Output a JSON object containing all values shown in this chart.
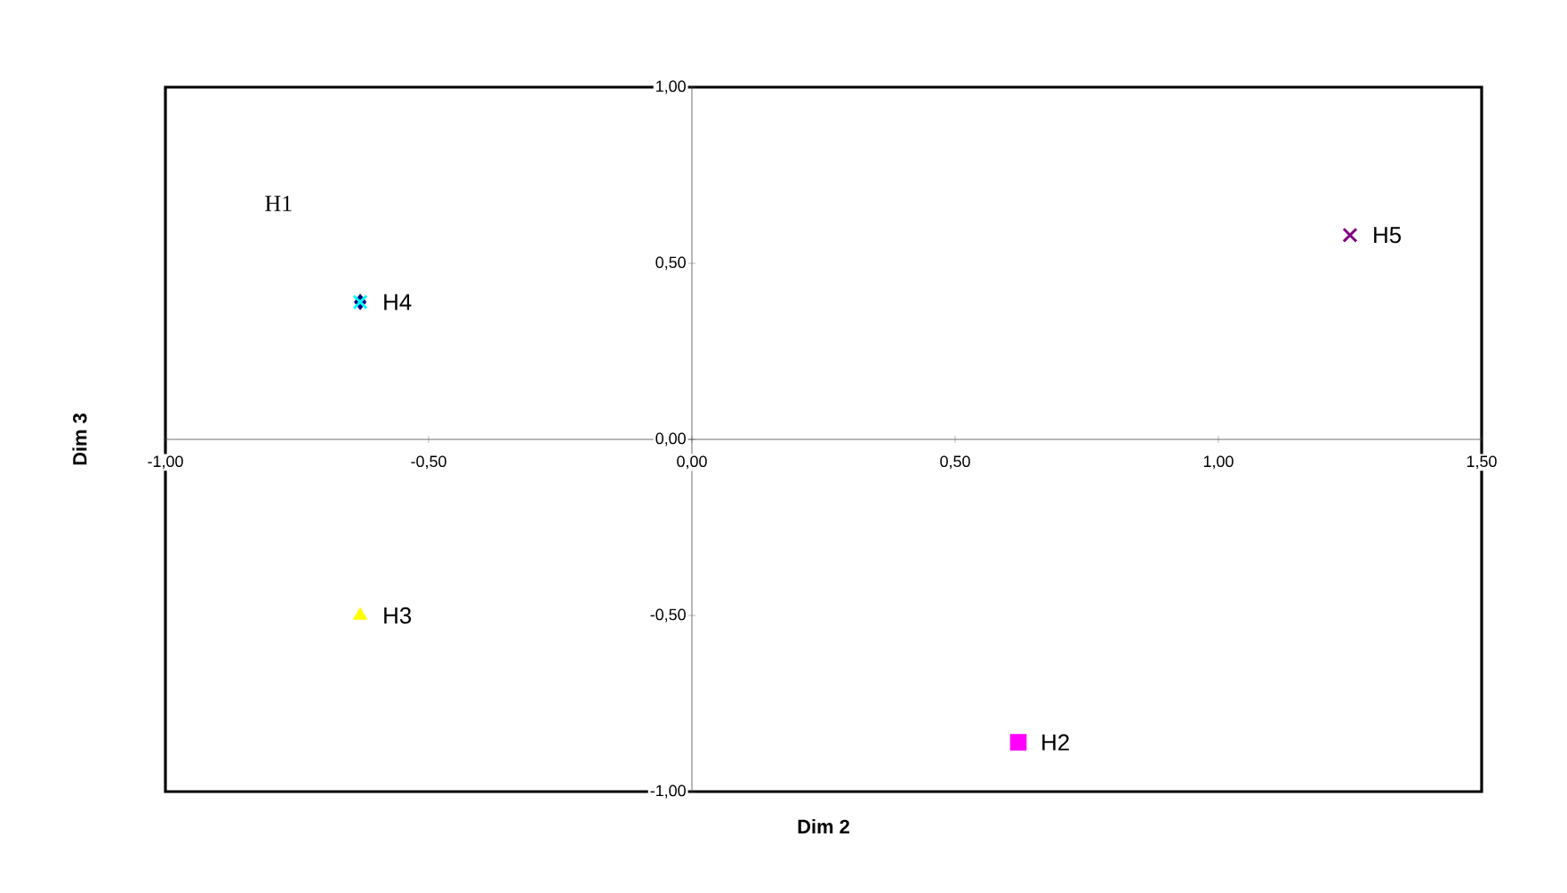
{
  "chart_data": {
    "type": "scatter",
    "xlabel": "Dim 2",
    "ylabel": "Dim 3",
    "xlim": [
      -1,
      1.5
    ],
    "ylim": [
      -1,
      1
    ],
    "xticks": [
      {
        "value": -1,
        "label": "-1,00"
      },
      {
        "value": -0.5,
        "label": "-0,50"
      },
      {
        "value": 0,
        "label": "0,00"
      },
      {
        "value": 0.5,
        "label": "0,50"
      },
      {
        "value": 1,
        "label": "1,00"
      },
      {
        "value": 1.5,
        "label": "1,50"
      }
    ],
    "yticks": [
      {
        "value": -1,
        "label": "-1,00"
      },
      {
        "value": -0.5,
        "label": "-0,50"
      },
      {
        "value": 0,
        "label": "0,00"
      },
      {
        "value": 0.5,
        "label": "0,50"
      },
      {
        "value": 1,
        "label": "1,00"
      }
    ],
    "series": [
      {
        "color": "#000080",
        "marker": "diamond",
        "x": [
          -0.63
        ],
        "values": [
          0.39
        ]
      },
      {
        "name": "H2",
        "color": "#ff00ff",
        "marker": "square",
        "x": [
          0.62
        ],
        "values": [
          -0.86
        ]
      },
      {
        "name": "H3",
        "color": "#ffff00",
        "marker": "triangle",
        "x": [
          -0.63
        ],
        "values": [
          -0.5
        ]
      },
      {
        "name": "H4",
        "color": "#00ffff",
        "marker": "cross",
        "x": [
          -0.63
        ],
        "values": [
          0.39
        ]
      },
      {
        "name": "H5",
        "color": "#800080",
        "marker": "cross",
        "x": [
          1.25
        ],
        "values": [
          0.58
        ]
      }
    ],
    "annotations": [
      "H1"
    ]
  }
}
